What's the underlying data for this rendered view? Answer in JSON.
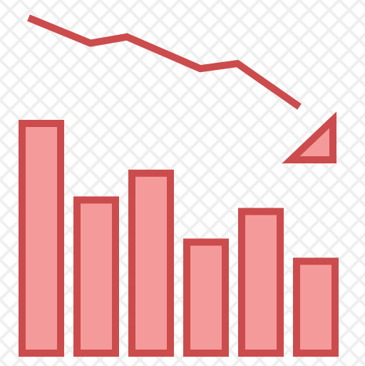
{
  "icon": {
    "name": "declining-bar-chart-icon",
    "colors": {
      "fill": "#F59A9A",
      "stroke": "#CC4B4C",
      "checker_light": "#FFFFFF",
      "checker_dark": "#EFEFEF"
    }
  },
  "chart_data": {
    "type": "bar",
    "categories": [
      "",
      "",
      "",
      "",
      "",
      ""
    ],
    "values": [
      300,
      200,
      235,
      145,
      185,
      120
    ],
    "trend_line": [
      100,
      80,
      85,
      60,
      64,
      30
    ],
    "ylim": [
      0,
      300
    ],
    "title": "",
    "xlabel": "",
    "ylabel": ""
  }
}
